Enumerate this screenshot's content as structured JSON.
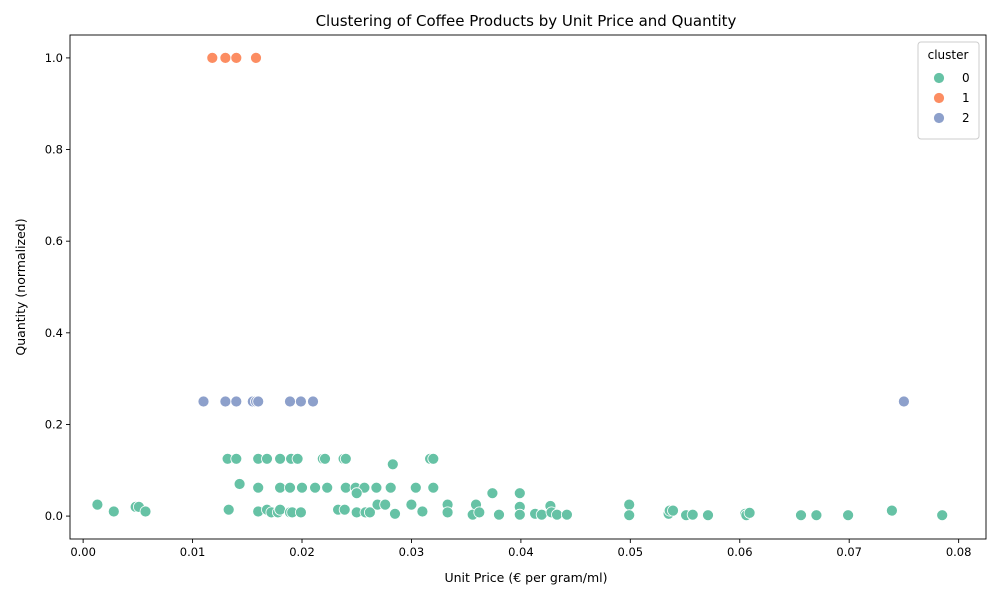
{
  "chart_data": {
    "type": "scatter",
    "title": "Clustering of Coffee Products by Unit Price and Quantity",
    "xlabel": "Unit Price (€ per gram/ml)",
    "ylabel": "Quantity (normalized)",
    "xlim": [
      -0.0012,
      0.0825
    ],
    "ylim": [
      -0.05,
      1.05
    ],
    "x_ticks": [
      0.0,
      0.01,
      0.02,
      0.03,
      0.04,
      0.05,
      0.06,
      0.07,
      0.08
    ],
    "x_tick_labels": [
      "0.00",
      "0.01",
      "0.02",
      "0.03",
      "0.04",
      "0.05",
      "0.06",
      "0.07",
      "0.08"
    ],
    "y_ticks": [
      0.0,
      0.2,
      0.4,
      0.6,
      0.8,
      1.0
    ],
    "y_tick_labels": [
      "0.0",
      "0.2",
      "0.4",
      "0.6",
      "0.8",
      "1.0"
    ],
    "grid": false,
    "legend": {
      "title": "cluster",
      "placement": "top-right"
    },
    "series": [
      {
        "name": "0",
        "color": "#66c2a5",
        "points": [
          [
            0.0013,
            0.025
          ],
          [
            0.0028,
            0.01
          ],
          [
            0.0048,
            0.02
          ],
          [
            0.0051,
            0.02
          ],
          [
            0.0057,
            0.01
          ],
          [
            0.0132,
            0.125
          ],
          [
            0.014,
            0.125
          ],
          [
            0.016,
            0.125
          ],
          [
            0.0168,
            0.125
          ],
          [
            0.018,
            0.125
          ],
          [
            0.019,
            0.125
          ],
          [
            0.0196,
            0.125
          ],
          [
            0.0219,
            0.125
          ],
          [
            0.0221,
            0.125
          ],
          [
            0.0238,
            0.125
          ],
          [
            0.024,
            0.125
          ],
          [
            0.0317,
            0.125
          ],
          [
            0.032,
            0.125
          ],
          [
            0.0283,
            0.113
          ],
          [
            0.0143,
            0.07
          ],
          [
            0.016,
            0.062
          ],
          [
            0.018,
            0.062
          ],
          [
            0.0189,
            0.062
          ],
          [
            0.02,
            0.062
          ],
          [
            0.0212,
            0.062
          ],
          [
            0.0223,
            0.062
          ],
          [
            0.024,
            0.062
          ],
          [
            0.0249,
            0.062
          ],
          [
            0.0257,
            0.062
          ],
          [
            0.0268,
            0.062
          ],
          [
            0.0281,
            0.062
          ],
          [
            0.0304,
            0.062
          ],
          [
            0.032,
            0.062
          ],
          [
            0.025,
            0.05
          ],
          [
            0.0374,
            0.05
          ],
          [
            0.0399,
            0.05
          ],
          [
            0.0133,
            0.014
          ],
          [
            0.016,
            0.01
          ],
          [
            0.0168,
            0.014
          ],
          [
            0.0172,
            0.008
          ],
          [
            0.0178,
            0.008
          ],
          [
            0.018,
            0.014
          ],
          [
            0.0189,
            0.008
          ],
          [
            0.0191,
            0.008
          ],
          [
            0.0199,
            0.008
          ],
          [
            0.0233,
            0.014
          ],
          [
            0.0239,
            0.014
          ],
          [
            0.025,
            0.008
          ],
          [
            0.0258,
            0.008
          ],
          [
            0.0262,
            0.008
          ],
          [
            0.0269,
            0.025
          ],
          [
            0.0276,
            0.025
          ],
          [
            0.0285,
            0.005
          ],
          [
            0.03,
            0.025
          ],
          [
            0.031,
            0.01
          ],
          [
            0.0333,
            0.025
          ],
          [
            0.0333,
            0.008
          ],
          [
            0.0356,
            0.003
          ],
          [
            0.0359,
            0.025
          ],
          [
            0.0362,
            0.008
          ],
          [
            0.038,
            0.003
          ],
          [
            0.0399,
            0.02
          ],
          [
            0.0399,
            0.003
          ],
          [
            0.0413,
            0.005
          ],
          [
            0.0419,
            0.003
          ],
          [
            0.0427,
            0.022
          ],
          [
            0.0428,
            0.008
          ],
          [
            0.0433,
            0.003
          ],
          [
            0.0442,
            0.003
          ],
          [
            0.0499,
            0.025
          ],
          [
            0.0499,
            0.002
          ],
          [
            0.0535,
            0.005
          ],
          [
            0.0536,
            0.012
          ],
          [
            0.0539,
            0.012
          ],
          [
            0.0551,
            0.002
          ],
          [
            0.0557,
            0.003
          ],
          [
            0.0571,
            0.002
          ],
          [
            0.0605,
            0.005
          ],
          [
            0.0606,
            0.002
          ],
          [
            0.0609,
            0.007
          ],
          [
            0.0656,
            0.002
          ],
          [
            0.067,
            0.002
          ],
          [
            0.0699,
            0.002
          ],
          [
            0.0739,
            0.012
          ],
          [
            0.0785,
            0.002
          ]
        ]
      },
      {
        "name": "1",
        "color": "#fc8d62",
        "points": [
          [
            0.0118,
            1.0
          ],
          [
            0.013,
            1.0
          ],
          [
            0.014,
            1.0
          ],
          [
            0.0158,
            1.0
          ]
        ]
      },
      {
        "name": "2",
        "color": "#8da0cb",
        "points": [
          [
            0.011,
            0.25
          ],
          [
            0.013,
            0.25
          ],
          [
            0.014,
            0.25
          ],
          [
            0.0155,
            0.25
          ],
          [
            0.0158,
            0.25
          ],
          [
            0.016,
            0.25
          ],
          [
            0.0189,
            0.25
          ],
          [
            0.0199,
            0.25
          ],
          [
            0.021,
            0.25
          ],
          [
            0.075,
            0.25
          ]
        ]
      }
    ]
  }
}
